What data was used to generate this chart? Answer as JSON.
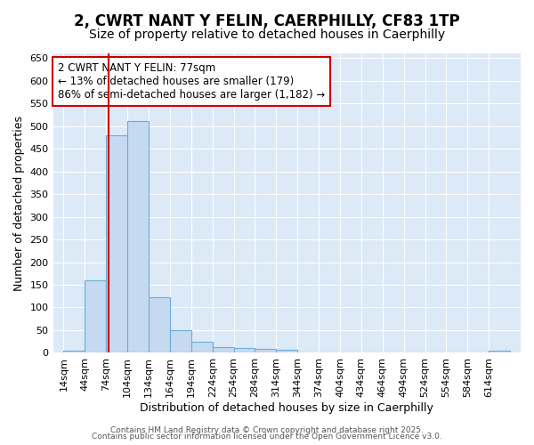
{
  "title_line1": "2, CWRT NANT Y FELIN, CAERPHILLY, CF83 1TP",
  "title_line2": "Size of property relative to detached houses in Caerphilly",
  "xlabel": "Distribution of detached houses by size in Caerphilly",
  "ylabel": "Number of detached properties",
  "bin_starts": [
    14,
    44,
    74,
    104,
    134,
    164,
    194,
    224,
    254,
    284,
    314,
    344,
    374,
    404,
    434,
    464,
    494,
    524,
    554,
    584,
    614
  ],
  "bin_width": 30,
  "bar_heights": [
    5,
    160,
    480,
    510,
    123,
    50,
    25,
    12,
    10,
    8,
    7,
    0,
    0,
    0,
    0,
    0,
    0,
    0,
    0,
    0,
    4
  ],
  "bar_color": "#c5d9f0",
  "bar_edge_color": "#6baed6",
  "vline_x": 77,
  "vline_color": "#cc0000",
  "ylim": [
    0,
    660
  ],
  "yticks": [
    0,
    50,
    100,
    150,
    200,
    250,
    300,
    350,
    400,
    450,
    500,
    550,
    600,
    650
  ],
  "annotation_text": "2 CWRT NANT Y FELIN: 77sqm\n← 13% of detached houses are smaller (179)\n86% of semi-detached houses are larger (1,182) →",
  "annotation_box_color": "#ffffff",
  "annotation_box_edge_color": "#cc0000",
  "figure_bg": "#ffffff",
  "plot_bg": "#dce9f7",
  "grid_color": "#ffffff",
  "tick_label_fontsize": 8,
  "title_fontsize1": 12,
  "title_fontsize2": 10,
  "footer_fontsize": 6.5,
  "footer_line1": "Contains HM Land Registry data © Crown copyright and database right 2025.",
  "footer_line2": "Contains public sector information licensed under the Open Government Licence v3.0."
}
